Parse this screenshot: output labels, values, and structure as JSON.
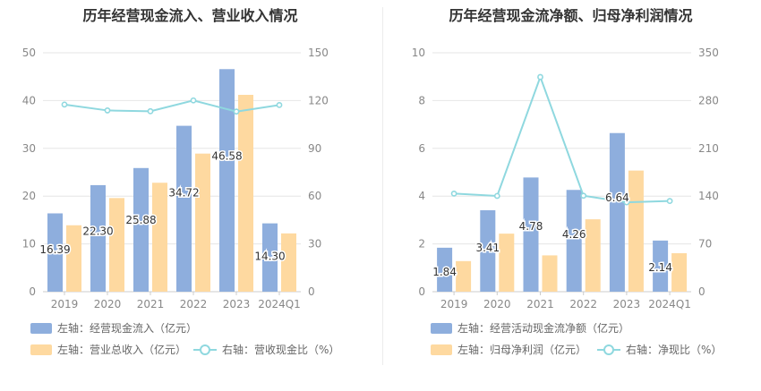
{
  "colors": {
    "bar1": "#8eaedd",
    "bar2": "#fed9a0",
    "line": "#8fd8df",
    "grid": "#e6e6e6",
    "axis_text": "#888888"
  },
  "chart_data": [
    {
      "type": "bar",
      "title": "历年经营现金流入、营业收入情况",
      "categories": [
        "2019",
        "2020",
        "2021",
        "2022",
        "2023",
        "2024Q1"
      ],
      "left_axis": {
        "ylim": [
          0,
          50
        ],
        "ticks": [
          "0",
          "10",
          "20",
          "30",
          "40",
          "50"
        ]
      },
      "right_axis": {
        "ylim": [
          0,
          150
        ],
        "ticks": [
          "0",
          "30",
          "60",
          "90",
          "120",
          "150"
        ]
      },
      "series": [
        {
          "name": "左轴：经营现金流入（亿元）",
          "axis": "left",
          "kind": "bar",
          "values": [
            16.39,
            22.3,
            25.88,
            34.72,
            46.58,
            14.3
          ],
          "labels": [
            "16.39",
            "22.30",
            "25.88",
            "34.72",
            "46.58",
            "14.30"
          ]
        },
        {
          "name": "左轴：营业总收入（亿元）",
          "axis": "left",
          "kind": "bar",
          "values": [
            13.9,
            19.6,
            22.8,
            28.9,
            41.2,
            12.2
          ]
        },
        {
          "name": "右轴：营收现金比（%）",
          "axis": "right",
          "kind": "line",
          "values": [
            117.5,
            113.8,
            113.3,
            120.1,
            113.1,
            117.2
          ]
        }
      ]
    },
    {
      "type": "bar",
      "title": "历年经营现金流净额、归母净利润情况",
      "categories": [
        "2019",
        "2020",
        "2021",
        "2022",
        "2023",
        "2024Q1"
      ],
      "left_axis": {
        "ylim": [
          0,
          10
        ],
        "ticks": [
          "0",
          "2",
          "4",
          "6",
          "8",
          "10"
        ]
      },
      "right_axis": {
        "ylim": [
          0,
          350
        ],
        "ticks": [
          "0",
          "70",
          "140",
          "210",
          "280",
          "350"
        ]
      },
      "series": [
        {
          "name": "左轴：经营活动现金流净额（亿元）",
          "axis": "left",
          "kind": "bar",
          "values": [
            1.84,
            3.41,
            4.78,
            4.26,
            6.64,
            2.14
          ],
          "labels": [
            "1.84",
            "3.41",
            "4.78",
            "4.26",
            "6.64",
            "2.14"
          ]
        },
        {
          "name": "左轴：归母净利润（亿元）",
          "axis": "left",
          "kind": "bar",
          "values": [
            1.28,
            2.43,
            1.52,
            3.03,
            5.07,
            1.61
          ]
        },
        {
          "name": "右轴：净现比（%）",
          "axis": "right",
          "kind": "line",
          "values": [
            143.7,
            140.3,
            314.5,
            140.6,
            131.0,
            132.9
          ]
        }
      ]
    }
  ]
}
